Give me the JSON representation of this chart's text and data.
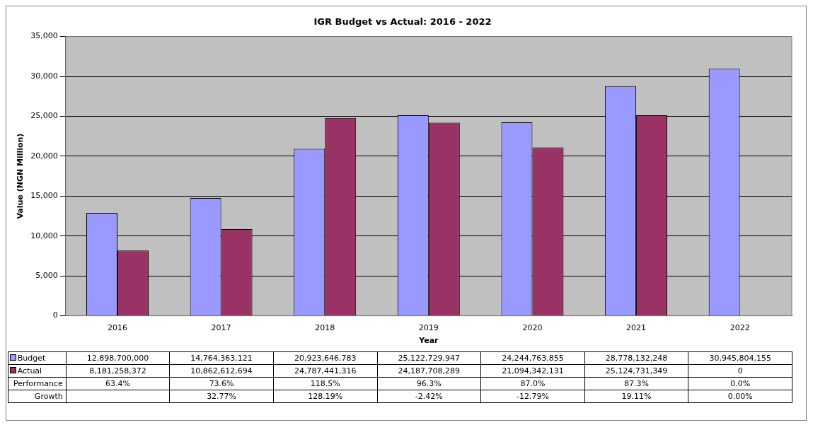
{
  "chart_data": {
    "type": "bar",
    "title": "IGR Budget vs Actual: 2016 - 2022",
    "xlabel": "Year",
    "ylabel": "Value (NGN Million)",
    "categories": [
      "2016",
      "2017",
      "2018",
      "2019",
      "2020",
      "2021",
      "2022"
    ],
    "series": [
      {
        "name": "Budget",
        "color": "#9999ff",
        "values": [
          12899,
          14764,
          20924,
          25123,
          24245,
          28778,
          30946
        ]
      },
      {
        "name": "Actual",
        "color": "#993366",
        "values": [
          8181,
          10863,
          24787,
          24188,
          21094,
          25125,
          0
        ]
      }
    ],
    "annotations": [
      "12,898,700,000",
      "14,764,363,121",
      "20,923,646,783",
      "25,122,729,947",
      "24,244,763,855",
      "28,778,132,248",
      "30,945,804,155",
      "8,181,258,372",
      "10,862,612,694",
      "24,787,441,316",
      "24,187,708,289",
      "21,094,342,131",
      "25,124,731,349",
      "0",
      "Performance",
      "63.4%",
      "73.6%",
      "118.5%",
      "96.3%",
      "87.0%",
      "87.3%",
      "0.0%",
      "Growth",
      "32.77%",
      "128.19%",
      "-2.42%",
      "-12.79%",
      "19.11%",
      "0.00%"
    ],
    "ylim": [
      0,
      35000
    ],
    "yticks": [
      0,
      {
        "value": 5000,
        "label": "5,000"
      },
      {
        "value": 10000,
        "label": "10,000"
      },
      {
        "value": 15000,
        "label": "15,000"
      },
      {
        "value": 20000,
        "label": "20,000"
      },
      {
        "value": 25000,
        "label": "25,000"
      },
      {
        "value": 30000,
        "label": "30,000"
      },
      {
        "value": 35000,
        "label": "35,000"
      }
    ],
    "grid": "y",
    "legend": "bottom"
  }
}
